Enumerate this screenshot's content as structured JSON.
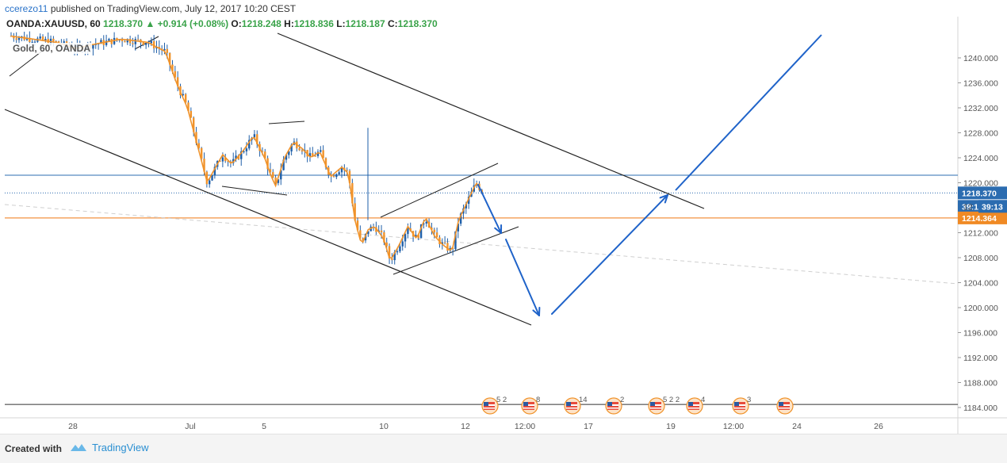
{
  "header": {
    "user": "ccerezo11",
    "published": "published on TradingView.com, July 12, 2017 10:20 CEST"
  },
  "ohlc": {
    "symbol": "OANDA:XAUUSD, 60",
    "last": "1218.370",
    "change": "+0.914 (+0.08%)",
    "o_label": "O:",
    "o": "1218.248",
    "h_label": "H:",
    "h": "1218.836",
    "l_label": "L:",
    "l": "1218.187",
    "c_label": "C:",
    "c": "1218.370"
  },
  "legend": "Gold, 60, OANDA",
  "footer": {
    "created_with": "Created with",
    "brand": "TradingView"
  },
  "colors": {
    "candle": "#f0932b",
    "wick": "#1f5fa8",
    "blue_arrow": "#1f63c9",
    "orange_line": "#f4a460",
    "blue_line": "#2b6cb0",
    "price_tag": "#2b6cb0",
    "orange_tag": "#f08a24"
  },
  "chart_data": {
    "type": "candlestick",
    "title": "Gold, 60, OANDA",
    "ylim": [
      1182,
      1244
    ],
    "y_ticks": [
      "1240.000",
      "1236.000",
      "1232.000",
      "1228.000",
      "1224.000",
      "1220.000",
      "1216.000",
      "1212.000",
      "1208.000",
      "1204.000",
      "1200.000",
      "1196.000",
      "1192.000",
      "1188.000",
      "1184.000"
    ],
    "x_ticks": [
      "28",
      "Jul",
      "5",
      "10",
      "12",
      "12:00",
      "17",
      "19",
      "12:00",
      "24",
      "26"
    ],
    "price_tags": {
      "last": "1218.370",
      "countdown": "39:13",
      "hidden": "12",
      "orange": "1214.364"
    },
    "horizontal_levels": [
      {
        "name": "resistance",
        "price": 1221.2
      },
      {
        "name": "current",
        "price": 1218.37
      },
      {
        "name": "orange",
        "price": 1214.364
      },
      {
        "name": "bottom",
        "price": 1184.5
      }
    ],
    "events": [
      {
        "label": "5 2"
      },
      {
        "label": "8"
      },
      {
        "label": "14"
      },
      {
        "label": "2"
      },
      {
        "label": "5 2 2"
      },
      {
        "label": "4"
      },
      {
        "label": "3"
      },
      {
        "label": ""
      }
    ],
    "price_path": [
      {
        "t": 0.0,
        "p": 1243.5
      },
      {
        "t": 2.0,
        "p": 1242.5
      },
      {
        "t": 3.0,
        "p": 1241.5
      },
      {
        "t": 3.5,
        "p": 1242.0
      },
      {
        "t": 5.0,
        "p": 1243.0
      },
      {
        "t": 6.2,
        "p": 1242.5
      },
      {
        "t": 7.0,
        "p": 1241.0
      },
      {
        "t": 7.5,
        "p": 1236.0
      },
      {
        "t": 8.0,
        "p": 1232.0
      },
      {
        "t": 8.3,
        "p": 1228.0
      },
      {
        "t": 8.6,
        "p": 1224.0
      },
      {
        "t": 8.9,
        "p": 1220.0
      },
      {
        "t": 9.2,
        "p": 1222.0
      },
      {
        "t": 9.6,
        "p": 1224.5
      },
      {
        "t": 10.0,
        "p": 1223.0
      },
      {
        "t": 10.5,
        "p": 1225.0
      },
      {
        "t": 11.0,
        "p": 1227.5
      },
      {
        "t": 11.5,
        "p": 1224.0
      },
      {
        "t": 11.8,
        "p": 1221.0
      },
      {
        "t": 12.0,
        "p": 1219.5
      },
      {
        "t": 12.4,
        "p": 1224.0
      },
      {
        "t": 12.8,
        "p": 1226.5
      },
      {
        "t": 13.2,
        "p": 1225.5
      },
      {
        "t": 13.6,
        "p": 1224.0
      },
      {
        "t": 14.0,
        "p": 1225.0
      },
      {
        "t": 14.5,
        "p": 1221.0
      },
      {
        "t": 15.0,
        "p": 1222.5
      },
      {
        "t": 15.3,
        "p": 1221.5
      },
      {
        "t": 15.6,
        "p": 1214.0
      },
      {
        "t": 15.9,
        "p": 1210.0
      },
      {
        "t": 16.2,
        "p": 1212.5
      },
      {
        "t": 16.5,
        "p": 1213.0
      },
      {
        "t": 16.9,
        "p": 1211.0
      },
      {
        "t": 17.2,
        "p": 1207.5
      },
      {
        "t": 17.6,
        "p": 1210.0
      },
      {
        "t": 18.0,
        "p": 1213.0
      },
      {
        "t": 18.4,
        "p": 1211.0
      },
      {
        "t": 18.8,
        "p": 1214.5
      },
      {
        "t": 19.2,
        "p": 1211.5
      },
      {
        "t": 19.6,
        "p": 1210.0
      },
      {
        "t": 20.0,
        "p": 1209.0
      },
      {
        "t": 20.3,
        "p": 1214.0
      },
      {
        "t": 20.7,
        "p": 1217.0
      },
      {
        "t": 21.1,
        "p": 1220.0
      },
      {
        "t": 21.4,
        "p": 1218.4
      }
    ]
  }
}
